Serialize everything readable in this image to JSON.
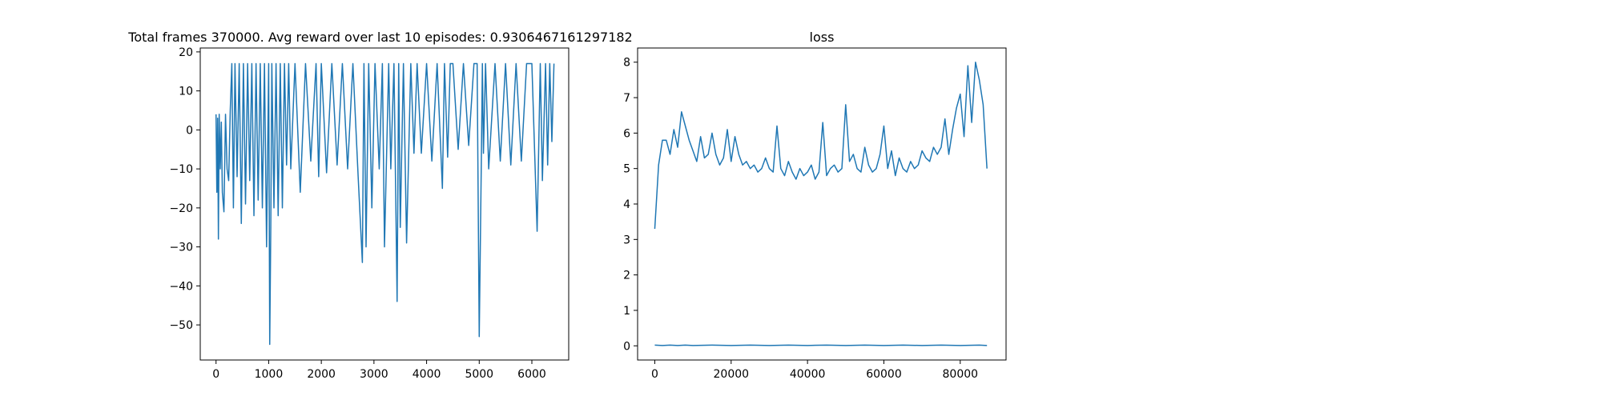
{
  "figure": {
    "background": "#ffffff",
    "line_color": "#1f77b4"
  },
  "chart_data": [
    {
      "type": "line",
      "title": "Total frames 370000. Avg reward over last 10 episodes: 0.9306467161297182",
      "xlabel": "",
      "ylabel": "",
      "xlim": [
        -300,
        6700
      ],
      "ylim": [
        -59,
        21
      ],
      "xticks": [
        0,
        1000,
        2000,
        3000,
        4000,
        5000,
        6000
      ],
      "yticks": [
        -50,
        -40,
        -30,
        -20,
        -10,
        0,
        10,
        20
      ],
      "grid": false,
      "legend": "none",
      "series": [
        {
          "color": "#1f77b4",
          "x": [
            0,
            15,
            30,
            45,
            60,
            80,
            100,
            120,
            150,
            180,
            210,
            240,
            270,
            300,
            330,
            360,
            400,
            440,
            480,
            520,
            560,
            600,
            640,
            680,
            720,
            760,
            800,
            840,
            880,
            920,
            960,
            1000,
            1020,
            1040,
            1060,
            1100,
            1140,
            1180,
            1220,
            1260,
            1300,
            1340,
            1380,
            1420,
            1500,
            1600,
            1700,
            1800,
            1900,
            1950,
            2000,
            2100,
            2200,
            2300,
            2400,
            2500,
            2600,
            2700,
            2780,
            2810,
            2850,
            2900,
            2960,
            3020,
            3100,
            3160,
            3200,
            3280,
            3320,
            3380,
            3440,
            3470,
            3500,
            3560,
            3620,
            3700,
            3760,
            3820,
            3900,
            4000,
            4100,
            4200,
            4300,
            4340,
            4400,
            4450,
            4500,
            4600,
            4700,
            4800,
            4900,
            4960,
            5000,
            5040,
            5060,
            5080,
            5120,
            5180,
            5300,
            5400,
            5500,
            5600,
            5700,
            5800,
            5900,
            6000,
            6100,
            6160,
            6200,
            6260,
            6300,
            6340,
            6380,
            6420
          ],
          "y": [
            4,
            -16,
            3,
            -28,
            4,
            -10,
            2,
            -16,
            -21,
            4,
            -10,
            -13,
            5,
            17,
            -20,
            17,
            -12,
            17,
            -24,
            17,
            -19,
            17,
            -13,
            17,
            -22,
            17,
            -18,
            17,
            -20,
            17,
            -30,
            17,
            -55,
            -25,
            17,
            -20,
            17,
            -22,
            17,
            -20,
            17,
            -9,
            17,
            -10,
            17,
            -16,
            17,
            -8,
            17,
            -12,
            17,
            -11,
            17,
            -9,
            17,
            -10,
            17,
            -12,
            -34,
            17,
            -30,
            17,
            -20,
            17,
            -10,
            17,
            -30,
            17,
            -10,
            17,
            -44,
            17,
            -25,
            17,
            -29,
            17,
            -6,
            17,
            -6,
            17,
            -8,
            17,
            -15,
            17,
            -7,
            17,
            17,
            -5,
            17,
            -4,
            17,
            17,
            -53,
            -8,
            17,
            -6,
            17,
            -10,
            17,
            -8,
            17,
            -9,
            17,
            -8,
            17,
            17,
            -26,
            17,
            -13,
            17,
            -9,
            17,
            -3,
            17
          ]
        }
      ]
    },
    {
      "type": "line",
      "title": "loss",
      "xlabel": "",
      "ylabel": "",
      "xlim": [
        -4500,
        92000
      ],
      "ylim": [
        -0.4,
        8.4
      ],
      "xticks": [
        0,
        20000,
        40000,
        60000,
        80000
      ],
      "yticks": [
        0,
        1,
        2,
        3,
        4,
        5,
        6,
        7,
        8
      ],
      "grid": false,
      "legend": "none",
      "series": [
        {
          "color": "#1f77b4",
          "x": [
            0,
            1000,
            2000,
            3000,
            4000,
            5000,
            6000,
            7000,
            8000,
            9000,
            10000,
            11000,
            12000,
            13000,
            14000,
            15000,
            16000,
            17000,
            18000,
            19000,
            20000,
            21000,
            22000,
            23000,
            24000,
            25000,
            26000,
            27000,
            28000,
            29000,
            30000,
            31000,
            32000,
            33000,
            34000,
            35000,
            36000,
            37000,
            38000,
            39000,
            40000,
            41000,
            42000,
            43000,
            44000,
            45000,
            46000,
            47000,
            48000,
            49000,
            50000,
            51000,
            52000,
            53000,
            54000,
            55000,
            56000,
            57000,
            58000,
            59000,
            60000,
            61000,
            62000,
            63000,
            64000,
            65000,
            66000,
            67000,
            68000,
            69000,
            70000,
            71000,
            72000,
            73000,
            74000,
            75000,
            76000,
            77000,
            78000,
            79000,
            80000,
            81000,
            82000,
            83000,
            84000,
            85000,
            86000,
            87000
          ],
          "y": [
            3.3,
            5.1,
            5.8,
            5.8,
            5.4,
            6.1,
            5.6,
            6.6,
            6.2,
            5.8,
            5.5,
            5.2,
            5.9,
            5.3,
            5.4,
            6.0,
            5.4,
            5.1,
            5.3,
            6.1,
            5.2,
            5.9,
            5.4,
            5.1,
            5.2,
            5.0,
            5.1,
            4.9,
            5.0,
            5.3,
            5.0,
            4.9,
            6.2,
            5.0,
            4.8,
            5.2,
            4.9,
            4.7,
            5.0,
            4.8,
            4.9,
            5.1,
            4.7,
            4.9,
            6.3,
            4.8,
            5.0,
            5.1,
            4.9,
            5.0,
            6.8,
            5.2,
            5.4,
            5.0,
            4.9,
            5.6,
            5.1,
            4.9,
            5.0,
            5.4,
            6.2,
            5.0,
            5.5,
            4.8,
            5.3,
            5.0,
            4.9,
            5.2,
            5.0,
            5.1,
            5.5,
            5.3,
            5.2,
            5.6,
            5.4,
            5.6,
            6.4,
            5.4,
            6.1,
            6.7,
            7.1,
            5.9,
            7.9,
            6.3,
            8.0,
            7.5,
            6.8,
            5.0
          ]
        },
        {
          "color": "#1f77b4",
          "x": [
            0,
            2000,
            4000,
            6000,
            8000,
            10000,
            15000,
            20000,
            25000,
            30000,
            35000,
            40000,
            45000,
            50000,
            55000,
            60000,
            65000,
            70000,
            75000,
            80000,
            85000,
            87000
          ],
          "y": [
            0.02,
            0.01,
            0.02,
            0.01,
            0.02,
            0.01,
            0.02,
            0.01,
            0.02,
            0.01,
            0.02,
            0.01,
            0.02,
            0.01,
            0.02,
            0.01,
            0.02,
            0.01,
            0.02,
            0.01,
            0.02,
            0.01
          ]
        }
      ]
    }
  ]
}
